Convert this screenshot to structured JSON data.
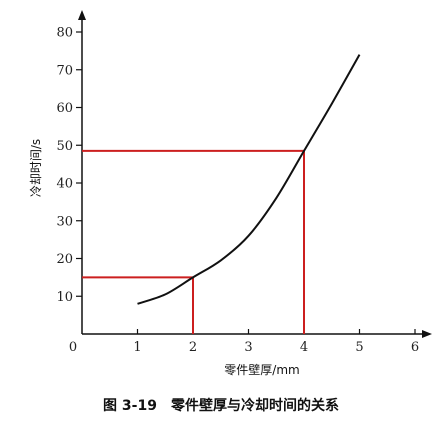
{
  "chart_data": {
    "type": "line",
    "xlabel": "零件壁厚/mm",
    "ylabel": "冷却时间/s",
    "xlim": [
      0,
      6
    ],
    "ylim": [
      0,
      80
    ],
    "x_ticks": [
      0,
      1,
      2,
      3,
      4,
      5,
      6
    ],
    "y_ticks": [
      10,
      20,
      30,
      40,
      50,
      60,
      70,
      80
    ],
    "grid": false,
    "series": [
      {
        "x": [
          1,
          1.5,
          2,
          2.5,
          3,
          3.5,
          4,
          4.5,
          5
        ],
        "y": [
          8,
          10.5,
          15,
          19.5,
          26,
          36,
          48.5,
          61,
          74
        ],
        "color": "#111111"
      }
    ],
    "annotations": [
      {
        "x": 2,
        "y": 15,
        "color": "#cc1f1f"
      },
      {
        "x": 4,
        "y": 48.5,
        "color": "#cc1f1f"
      }
    ]
  },
  "caption": "图 3-19　零件壁厚与冷却时间的关系"
}
